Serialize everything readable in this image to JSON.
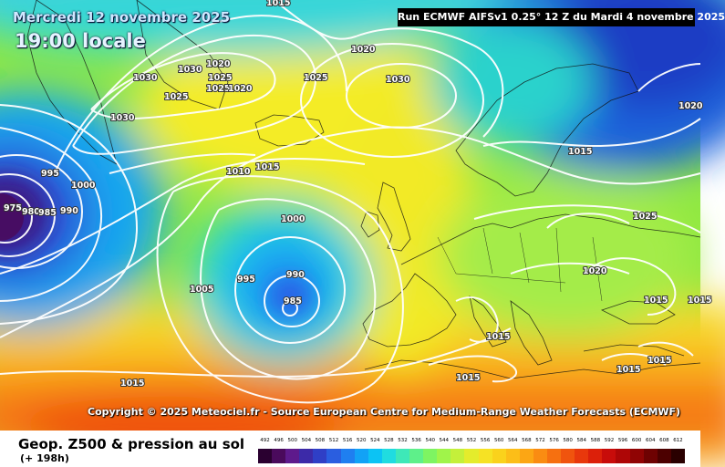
{
  "header": {
    "date": "Mercredi 12 novembre 2025",
    "time": "19:00 locale",
    "run": "Run ECMWF AIFSv1 0.25° 12 Z du Mardi 4 novembre 2025"
  },
  "copyright": "Copyright © 2025 Meteociel.fr - Source European Centre for Medium-Range Weather Forecasts (ECMWF)",
  "footer": {
    "title": "Geop. Z500 & pression au sol",
    "subtitle": "(+ 198h)"
  },
  "scale": {
    "values": [
      "492",
      "496",
      "500",
      "504",
      "508",
      "512",
      "516",
      "520",
      "524",
      "528",
      "532",
      "536",
      "540",
      "544",
      "548",
      "552",
      "556",
      "560",
      "564",
      "568",
      "572",
      "576",
      "580",
      "584",
      "588",
      "592",
      "596",
      "600",
      "604",
      "608",
      "612"
    ],
    "colors": [
      "#2a0030",
      "#4a0a5c",
      "#5e1a8c",
      "#3c2aa8",
      "#2f3fc6",
      "#2a5ee0",
      "#1f7ff0",
      "#12a2f6",
      "#0cc3f4",
      "#20dce0",
      "#3ee8b8",
      "#5ef08a",
      "#7ef462",
      "#a0f44a",
      "#c4f03a",
      "#e4ec2c",
      "#f6e224",
      "#fad21c",
      "#fcbe18",
      "#fca614",
      "#fa8c12",
      "#f67010",
      "#f0540e",
      "#e8380c",
      "#dc200a",
      "#c80c0a",
      "#ae0606",
      "#900404",
      "#6e0202",
      "#4c0000",
      "#2a0000"
    ]
  },
  "isobar_labels": [
    {
      "id": "l1015-top",
      "text": "1015"
    },
    {
      "id": "l1020-top",
      "text": "1020"
    },
    {
      "id": "l1030-a",
      "text": "1030"
    },
    {
      "id": "l1030-b",
      "text": "1030"
    },
    {
      "id": "l1020-b",
      "text": "1020"
    },
    {
      "id": "l1025-a",
      "text": "1025"
    },
    {
      "id": "l1025-b",
      "text": "1025"
    },
    {
      "id": "l1020-c",
      "text": "1020"
    },
    {
      "id": "l1025-c",
      "text": "1025"
    },
    {
      "id": "l1030-c",
      "text": "1030"
    },
    {
      "id": "l1030-d",
      "text": "1030"
    },
    {
      "id": "l1025-d",
      "text": "1025"
    },
    {
      "id": "l1020-r",
      "text": "1020"
    },
    {
      "id": "l995-a",
      "text": "995"
    },
    {
      "id": "l1000-a",
      "text": "1000"
    },
    {
      "id": "l975",
      "text": "975"
    },
    {
      "id": "l980",
      "text": "980"
    },
    {
      "id": "l985-a",
      "text": "985"
    },
    {
      "id": "l990-a",
      "text": "990"
    },
    {
      "id": "l1010",
      "text": "1010"
    },
    {
      "id": "l1015-a",
      "text": "1015"
    },
    {
      "id": "l1000-b",
      "text": "1000"
    },
    {
      "id": "l995-b",
      "text": "995"
    },
    {
      "id": "l990-b",
      "text": "990"
    },
    {
      "id": "l985-b",
      "text": "985"
    },
    {
      "id": "l1005",
      "text": "1005"
    },
    {
      "id": "l1015-b",
      "text": "1015"
    },
    {
      "id": "l1025-e",
      "text": "1025"
    },
    {
      "id": "l1020-e",
      "text": "1020"
    },
    {
      "id": "l1015-c",
      "text": "1015"
    },
    {
      "id": "l1015-d",
      "text": "1015"
    },
    {
      "id": "l1015-e",
      "text": "1015"
    },
    {
      "id": "l1015-f",
      "text": "1015"
    },
    {
      "id": "l1015-g",
      "text": "1015"
    },
    {
      "id": "l1015-h",
      "text": "1015"
    },
    {
      "id": "l1015-i",
      "text": "1015"
    }
  ]
}
